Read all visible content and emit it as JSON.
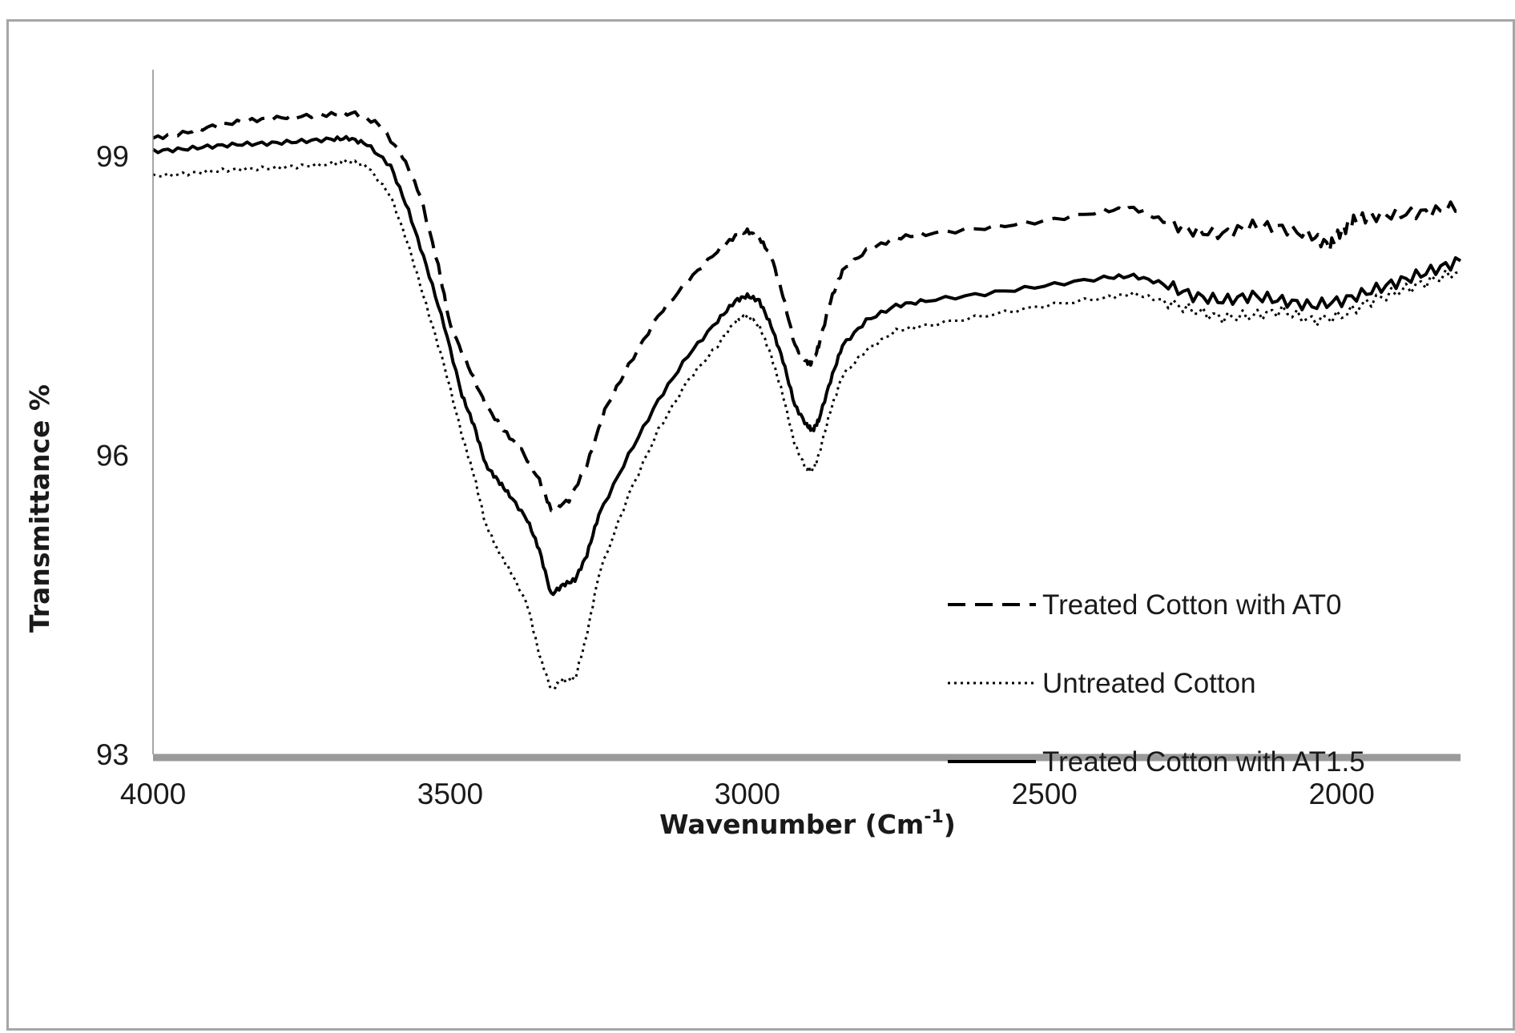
{
  "chart_data": {
    "type": "line",
    "title": "",
    "xlabel": "Wavenumber (Cm",
    "xlabel_sup": "-1",
    "xlabel_close": ")",
    "ylabel": "Transmittance  %",
    "xlim": [
      4000,
      1800
    ],
    "x_reversed": true,
    "ylim": [
      93,
      100
    ],
    "x_ticks": [
      4000,
      3500,
      3000,
      2500,
      2000
    ],
    "y_ticks": [
      93,
      96,
      99
    ],
    "grid": false,
    "legend_position": "right-middle",
    "series": [
      {
        "name": "Treated Cotton with AT0",
        "style": "dashed",
        "color": "#000000",
        "x": [
          4000,
          3950,
          3900,
          3850,
          3800,
          3750,
          3700,
          3660,
          3620,
          3580,
          3550,
          3520,
          3500,
          3470,
          3440,
          3410,
          3380,
          3350,
          3330,
          3300,
          3270,
          3240,
          3200,
          3150,
          3100,
          3050,
          3020,
          3000,
          2980,
          2960,
          2940,
          2920,
          2900,
          2890,
          2880,
          2860,
          2840,
          2800,
          2750,
          2700,
          2600,
          2500,
          2400,
          2350,
          2300,
          2250,
          2200,
          2150,
          2100,
          2050,
          2020,
          2000,
          1980,
          1950,
          1900,
          1850,
          1800
        ],
        "y": [
          99.18,
          99.23,
          99.3,
          99.35,
          99.38,
          99.4,
          99.42,
          99.43,
          99.32,
          99.0,
          98.6,
          97.9,
          97.3,
          96.9,
          96.5,
          96.25,
          96.05,
          95.75,
          95.45,
          95.55,
          95.9,
          96.45,
          96.9,
          97.4,
          97.75,
          98.05,
          98.2,
          98.25,
          98.18,
          98.0,
          97.6,
          97.1,
          96.93,
          96.92,
          97.1,
          97.55,
          97.85,
          98.05,
          98.18,
          98.22,
          98.28,
          98.35,
          98.45,
          98.48,
          98.35,
          98.25,
          98.22,
          98.3,
          98.28,
          98.2,
          98.1,
          98.25,
          98.35,
          98.4,
          98.42,
          98.44,
          98.5
        ]
      },
      {
        "name": "Untreated Cotton",
        "style": "dotted",
        "color": "#000000",
        "x": [
          4000,
          3950,
          3900,
          3850,
          3800,
          3750,
          3700,
          3670,
          3640,
          3600,
          3570,
          3540,
          3510,
          3480,
          3460,
          3440,
          3420,
          3400,
          3370,
          3350,
          3330,
          3310,
          3290,
          3270,
          3250,
          3200,
          3150,
          3100,
          3050,
          3020,
          3000,
          2980,
          2960,
          2940,
          2920,
          2900,
          2890,
          2880,
          2860,
          2840,
          2800,
          2750,
          2700,
          2600,
          2500,
          2400,
          2350,
          2300,
          2250,
          2200,
          2150,
          2100,
          2050,
          2000,
          1950,
          1900,
          1850,
          1800
        ],
        "y": [
          98.8,
          98.82,
          98.85,
          98.87,
          98.88,
          98.9,
          98.92,
          98.95,
          98.9,
          98.6,
          98.1,
          97.5,
          96.9,
          96.2,
          95.8,
          95.3,
          95.05,
          94.85,
          94.5,
          94.0,
          93.65,
          93.75,
          93.75,
          94.2,
          94.8,
          95.6,
          96.25,
          96.75,
          97.1,
          97.35,
          97.4,
          97.3,
          97.0,
          96.6,
          96.1,
          95.85,
          95.85,
          96.0,
          96.45,
          96.8,
          97.05,
          97.25,
          97.3,
          97.4,
          97.5,
          97.58,
          97.62,
          97.55,
          97.45,
          97.38,
          97.4,
          97.45,
          97.35,
          97.4,
          97.55,
          97.65,
          97.75,
          97.85
        ]
      },
      {
        "name": "Treated Cotton with AT1.5",
        "style": "solid",
        "color": "#000000",
        "x": [
          4000,
          3950,
          3900,
          3850,
          3800,
          3750,
          3700,
          3670,
          3640,
          3600,
          3570,
          3540,
          3510,
          3480,
          3460,
          3440,
          3420,
          3400,
          3370,
          3350,
          3330,
          3310,
          3290,
          3270,
          3250,
          3200,
          3150,
          3100,
          3050,
          3020,
          3000,
          2980,
          2960,
          2940,
          2920,
          2900,
          2890,
          2880,
          2860,
          2840,
          2800,
          2750,
          2700,
          2600,
          2500,
          2400,
          2350,
          2300,
          2250,
          2200,
          2150,
          2100,
          2050,
          2000,
          1950,
          1900,
          1850,
          1800
        ],
        "y": [
          99.05,
          99.07,
          99.1,
          99.12,
          99.13,
          99.15,
          99.17,
          99.18,
          99.12,
          98.9,
          98.45,
          97.9,
          97.3,
          96.6,
          96.3,
          95.9,
          95.75,
          95.6,
          95.35,
          95.05,
          94.6,
          94.7,
          94.75,
          95.0,
          95.4,
          96.0,
          96.55,
          97.0,
          97.35,
          97.55,
          97.6,
          97.55,
          97.3,
          96.95,
          96.5,
          96.3,
          96.25,
          96.35,
          96.75,
          97.1,
          97.35,
          97.5,
          97.55,
          97.62,
          97.7,
          97.78,
          97.8,
          97.72,
          97.6,
          97.55,
          97.6,
          97.55,
          97.5,
          97.55,
          97.65,
          97.75,
          97.85,
          97.95
        ]
      }
    ]
  }
}
